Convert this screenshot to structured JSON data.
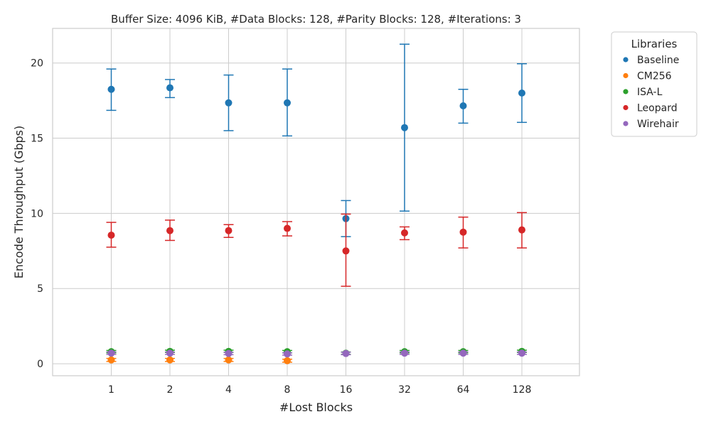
{
  "chart_data": {
    "type": "scatter",
    "title": "Buffer Size: 4096 KiB, #Data Blocks: 128, #Parity Blocks: 128, #Iterations: 3",
    "xlabel": "#Lost Blocks",
    "ylabel": "Encode Throughput (Gbps)",
    "categories": [
      "1",
      "2",
      "4",
      "8",
      "16",
      "32",
      "64",
      "128"
    ],
    "ylim": [
      -0.8,
      22.3
    ],
    "yticks": [
      0,
      5,
      10,
      15,
      20
    ],
    "grid": true,
    "legend": {
      "title": "Libraries",
      "placement": "outside-top-right"
    },
    "series": [
      {
        "name": "Baseline",
        "color": "#1f77b4",
        "values": [
          18.25,
          18.35,
          17.35,
          17.35,
          9.65,
          15.7,
          17.15,
          18.0
        ],
        "err_low": [
          16.85,
          17.7,
          15.5,
          15.15,
          8.45,
          10.15,
          16.0,
          16.05
        ],
        "err_high": [
          19.6,
          18.9,
          19.2,
          19.6,
          10.85,
          21.25,
          18.25,
          19.95
        ]
      },
      {
        "name": "CM256",
        "color": "#ff7f0e",
        "values": [
          0.25,
          0.25,
          0.25,
          0.2,
          null,
          null,
          null,
          null
        ],
        "err_low": [
          0.15,
          0.15,
          0.15,
          0.1,
          null,
          null,
          null,
          null
        ],
        "err_high": [
          0.35,
          0.35,
          0.35,
          0.3,
          null,
          null,
          null,
          null
        ]
      },
      {
        "name": "ISA-L",
        "color": "#2ca02c",
        "values": [
          0.8,
          0.82,
          0.82,
          0.8,
          0.7,
          0.8,
          0.8,
          0.82
        ],
        "err_low": [
          0.72,
          0.75,
          0.75,
          0.72,
          0.62,
          0.72,
          0.72,
          0.75
        ],
        "err_high": [
          0.88,
          0.9,
          0.9,
          0.88,
          0.78,
          0.88,
          0.88,
          0.9
        ]
      },
      {
        "name": "Leopard",
        "color": "#d62728",
        "values": [
          8.55,
          8.85,
          8.85,
          9.0,
          7.5,
          8.7,
          8.75,
          8.9
        ],
        "err_low": [
          7.75,
          8.2,
          8.4,
          8.5,
          5.15,
          8.25,
          7.7,
          7.7
        ],
        "err_high": [
          9.4,
          9.55,
          9.25,
          9.45,
          9.95,
          9.1,
          9.75,
          10.05
        ]
      },
      {
        "name": "Wirehair",
        "color": "#9467bd",
        "values": [
          0.7,
          0.7,
          0.68,
          0.65,
          0.68,
          0.7,
          0.7,
          0.7
        ],
        "err_low": [
          0.62,
          0.62,
          0.6,
          0.57,
          0.6,
          0.62,
          0.62,
          0.62
        ],
        "err_high": [
          0.78,
          0.78,
          0.76,
          0.73,
          0.76,
          0.78,
          0.78,
          0.78
        ]
      }
    ]
  }
}
